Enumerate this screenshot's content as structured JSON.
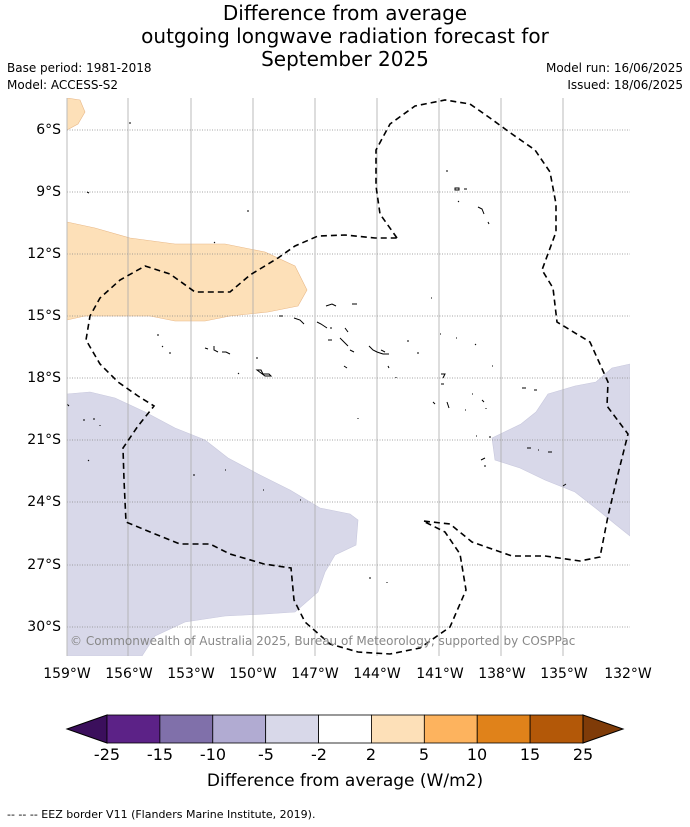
{
  "title_lines": [
    "Difference from average",
    "outgoing longwave radiation forecast for",
    "September 2025"
  ],
  "base_period": "Base period: 1981-2018",
  "model": "Model: ACCESS-S2",
  "model_run": "Model run: 16/06/2025",
  "issued": "Issued: 18/06/2025",
  "copyright": "© Commonwealth of Australia 2025, Bureau of Meteorology, supported by COSPPac",
  "lat_labels": [
    "6°S",
    "9°S",
    "12°S",
    "15°S",
    "18°S",
    "21°S",
    "24°S",
    "27°S",
    "30°S"
  ],
  "lon_labels": [
    "159°W",
    "156°W",
    "153°W",
    "150°W",
    "147°W",
    "144°W",
    "141°W",
    "138°W",
    "135°W",
    "132°W"
  ],
  "colorbar": {
    "title": "Difference from average (W/m2)",
    "tick_labels": [
      "-25",
      "-15",
      "-10",
      "-5",
      "-2",
      "2",
      "5",
      "10",
      "15",
      "25"
    ],
    "colors": {
      "below": "#3b0f5c",
      "bins": [
        "#5c2287",
        "#8070aa",
        "#b1abd2",
        "#d8d8e9",
        "#ffffff",
        "#fde0b8",
        "#fdb35e",
        "#e0821a",
        "#b35808"
      ],
      "above": "#7f3b08"
    }
  },
  "map_extent": {
    "lon_min": -159,
    "lon_max": -132,
    "lat_min": -31,
    "lat_max": -4.5
  },
  "footnote": "-- -- -- EEZ border V11 (Flanders Marine Institute, 2019)."
}
